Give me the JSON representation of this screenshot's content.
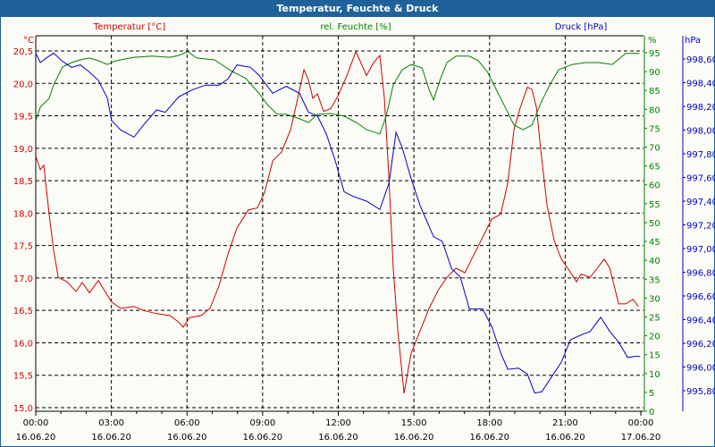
{
  "window": {
    "title": "Temperatur, Feuchte & Druck"
  },
  "chart_data": {
    "type": "line",
    "title": "Temperatur, Feuchte & Druck",
    "colors": {
      "temperature": "#cc0000",
      "humidity": "#008000",
      "pressure": "#0000cc",
      "title_bg": "#1f6299"
    },
    "xlabel": "",
    "x_unit": "hours since 16.06.20 00:00",
    "xlim": [
      0,
      24
    ],
    "x_ticks": [
      {
        "time": "00:00",
        "date": "16.06.20"
      },
      {
        "time": "03:00",
        "date": "16.06.20"
      },
      {
        "time": "06:00",
        "date": "16.06.20"
      },
      {
        "time": "09:00",
        "date": "16.06.20"
      },
      {
        "time": "12:00",
        "date": "16.06.20"
      },
      {
        "time": "15:00",
        "date": "16.06.20"
      },
      {
        "time": "18:00",
        "date": "16.06.20"
      },
      {
        "time": "21:00",
        "date": "16.06.20"
      },
      {
        "time": "00:00",
        "date": "17.06.20"
      }
    ],
    "grid": true,
    "axes": {
      "temperature": {
        "unit": "°C",
        "ylim": [
          15.0,
          20.5
        ],
        "ticks": [
          "15,0",
          "15,5",
          "16,0",
          "16,5",
          "17,0",
          "17,5",
          "18,0",
          "18,5",
          "19,0",
          "19,5",
          "20,0",
          "20,5"
        ]
      },
      "humidity": {
        "unit": "%",
        "ylim": [
          0,
          95
        ],
        "ticks": [
          "0",
          "5",
          "10",
          "15",
          "20",
          "25",
          "30",
          "35",
          "40",
          "45",
          "50",
          "55",
          "60",
          "65",
          "70",
          "75",
          "80",
          "85",
          "90",
          "95"
        ]
      },
      "pressure": {
        "unit": "hPa",
        "ylim": [
          995.8,
          998.6
        ],
        "ticks": [
          "995,80",
          "996,00",
          "996,20",
          "996,40",
          "996,60",
          "996,80",
          "997,00",
          "997,20",
          "997,40",
          "997,60",
          "997,80",
          "998,00",
          "998,20",
          "998,40",
          "998,60"
        ]
      }
    },
    "series": [
      {
        "name": "Temperatur [°C]",
        "axis": "temperature",
        "points": [
          [
            0,
            18.88
          ],
          [
            0.18,
            18.67
          ],
          [
            0.32,
            18.74
          ],
          [
            0.53,
            17.98
          ],
          [
            0.71,
            17.43
          ],
          [
            0.89,
            17.01
          ],
          [
            1.24,
            16.94
          ],
          [
            1.6,
            16.79
          ],
          [
            1.84,
            16.93
          ],
          [
            2.13,
            16.77
          ],
          [
            2.48,
            16.96
          ],
          [
            3.01,
            16.63
          ],
          [
            3.37,
            16.53
          ],
          [
            3.9,
            16.56
          ],
          [
            4.26,
            16.5
          ],
          [
            4.79,
            16.45
          ],
          [
            5.32,
            16.42
          ],
          [
            5.67,
            16.32
          ],
          [
            5.85,
            16.24
          ],
          [
            6.1,
            16.39
          ],
          [
            6.56,
            16.42
          ],
          [
            6.91,
            16.53
          ],
          [
            7.27,
            16.88
          ],
          [
            7.62,
            17.36
          ],
          [
            7.98,
            17.77
          ],
          [
            8.44,
            18.05
          ],
          [
            8.79,
            18.08
          ],
          [
            9.08,
            18.32
          ],
          [
            9.4,
            18.81
          ],
          [
            9.75,
            18.94
          ],
          [
            10.11,
            19.29
          ],
          [
            10.39,
            19.77
          ],
          [
            10.64,
            20.21
          ],
          [
            10.82,
            20.05
          ],
          [
            10.99,
            19.77
          ],
          [
            11.17,
            19.84
          ],
          [
            11.42,
            19.57
          ],
          [
            11.7,
            19.61
          ],
          [
            11.99,
            19.81
          ],
          [
            12.34,
            20.12
          ],
          [
            12.7,
            20.49
          ],
          [
            13.12,
            20.12
          ],
          [
            13.4,
            20.32
          ],
          [
            13.65,
            20.43
          ],
          [
            13.83,
            19.77
          ],
          [
            14.01,
            18.53
          ],
          [
            14.18,
            17.15
          ],
          [
            14.36,
            16.19
          ],
          [
            14.61,
            15.22
          ],
          [
            14.89,
            15.84
          ],
          [
            15.25,
            16.19
          ],
          [
            15.6,
            16.53
          ],
          [
            15.96,
            16.81
          ],
          [
            16.31,
            17.01
          ],
          [
            16.67,
            17.15
          ],
          [
            17.02,
            17.08
          ],
          [
            17.38,
            17.36
          ],
          [
            17.73,
            17.63
          ],
          [
            18.09,
            17.91
          ],
          [
            18.44,
            17.98
          ],
          [
            18.72,
            18.46
          ],
          [
            18.97,
            19.29
          ],
          [
            19.22,
            19.63
          ],
          [
            19.5,
            19.94
          ],
          [
            19.68,
            19.91
          ],
          [
            19.86,
            19.63
          ],
          [
            20.04,
            18.94
          ],
          [
            20.28,
            18.12
          ],
          [
            20.57,
            17.57
          ],
          [
            20.85,
            17.29
          ],
          [
            21.1,
            17.15
          ],
          [
            21.45,
            16.94
          ],
          [
            21.63,
            17.06
          ],
          [
            21.99,
            17.01
          ],
          [
            22.27,
            17.15
          ],
          [
            22.55,
            17.29
          ],
          [
            22.77,
            17.15
          ],
          [
            23.12,
            16.6
          ],
          [
            23.4,
            16.6
          ],
          [
            23.69,
            16.67
          ],
          [
            23.9,
            16.56
          ]
        ]
      },
      {
        "name": "rel. Feuchte [%]",
        "axis": "humidity",
        "points": [
          [
            0,
            77.0
          ],
          [
            0.18,
            80.6
          ],
          [
            0.53,
            82.9
          ],
          [
            0.71,
            86.5
          ],
          [
            0.89,
            88.9
          ],
          [
            1.06,
            91.2
          ],
          [
            1.42,
            92.4
          ],
          [
            1.77,
            93.1
          ],
          [
            2.13,
            93.6
          ],
          [
            2.48,
            92.9
          ],
          [
            2.84,
            91.9
          ],
          [
            3.19,
            92.9
          ],
          [
            3.9,
            93.8
          ],
          [
            4.61,
            94.1
          ],
          [
            5.32,
            93.8
          ],
          [
            5.67,
            94.3
          ],
          [
            6.03,
            95.3
          ],
          [
            6.38,
            93.6
          ],
          [
            7.09,
            93.1
          ],
          [
            7.8,
            90.0
          ],
          [
            8.33,
            88.2
          ],
          [
            8.87,
            84.1
          ],
          [
            9.22,
            81.0
          ],
          [
            9.57,
            78.7
          ],
          [
            9.93,
            78.7
          ],
          [
            10.46,
            77.5
          ],
          [
            10.82,
            76.5
          ],
          [
            11.17,
            78.7
          ],
          [
            11.7,
            78.9
          ],
          [
            12.23,
            78.2
          ],
          [
            12.77,
            76.3
          ],
          [
            13.12,
            74.6
          ],
          [
            13.65,
            73.5
          ],
          [
            13.9,
            78.2
          ],
          [
            14.18,
            86.5
          ],
          [
            14.54,
            90.5
          ],
          [
            14.89,
            91.9
          ],
          [
            15.32,
            91.0
          ],
          [
            15.6,
            85.3
          ],
          [
            15.78,
            82.5
          ],
          [
            16.03,
            87.7
          ],
          [
            16.31,
            92.4
          ],
          [
            16.67,
            94.1
          ],
          [
            17.2,
            94.1
          ],
          [
            17.55,
            92.9
          ],
          [
            17.91,
            90.0
          ],
          [
            18.26,
            85.3
          ],
          [
            18.62,
            80.6
          ],
          [
            18.97,
            75.8
          ],
          [
            19.33,
            74.6
          ],
          [
            19.68,
            75.8
          ],
          [
            20.04,
            81.8
          ],
          [
            20.39,
            86.5
          ],
          [
            20.74,
            90.5
          ],
          [
            21.28,
            91.9
          ],
          [
            21.81,
            92.4
          ],
          [
            22.34,
            92.4
          ],
          [
            22.87,
            91.9
          ],
          [
            23.4,
            94.8
          ],
          [
            23.94,
            94.8
          ]
        ]
      },
      {
        "name": "Druck [hPa]",
        "axis": "pressure",
        "points": [
          [
            0,
            998.65
          ],
          [
            0.18,
            998.57
          ],
          [
            0.43,
            998.61
          ],
          [
            0.71,
            998.65
          ],
          [
            1.06,
            998.58
          ],
          [
            1.42,
            998.53
          ],
          [
            1.77,
            998.55
          ],
          [
            2.13,
            998.49
          ],
          [
            2.48,
            998.42
          ],
          [
            2.84,
            998.27
          ],
          [
            3.01,
            998.08
          ],
          [
            3.37,
            998.0
          ],
          [
            3.9,
            997.94
          ],
          [
            4.26,
            998.04
          ],
          [
            4.79,
            998.17
          ],
          [
            5.14,
            998.15
          ],
          [
            5.67,
            998.28
          ],
          [
            6.21,
            998.34
          ],
          [
            6.74,
            998.38
          ],
          [
            7.27,
            998.38
          ],
          [
            7.62,
            998.43
          ],
          [
            7.98,
            998.55
          ],
          [
            8.51,
            998.53
          ],
          [
            8.87,
            998.46
          ],
          [
            9.4,
            998.31
          ],
          [
            9.93,
            998.37
          ],
          [
            10.46,
            998.31
          ],
          [
            10.82,
            998.15
          ],
          [
            11.17,
            998.12
          ],
          [
            11.52,
            997.97
          ],
          [
            11.88,
            997.74
          ],
          [
            12.23,
            997.48
          ],
          [
            12.59,
            997.44
          ],
          [
            13.12,
            997.4
          ],
          [
            13.65,
            997.33
          ],
          [
            14.01,
            997.55
          ],
          [
            14.29,
            997.98
          ],
          [
            14.54,
            997.85
          ],
          [
            14.89,
            997.59
          ],
          [
            15.25,
            997.36
          ],
          [
            15.78,
            997.1
          ],
          [
            16.13,
            997.06
          ],
          [
            16.49,
            996.83
          ],
          [
            16.84,
            996.76
          ],
          [
            17.2,
            996.49
          ],
          [
            17.73,
            996.49
          ],
          [
            18.09,
            996.34
          ],
          [
            18.44,
            996.12
          ],
          [
            18.72,
            995.98
          ],
          [
            19.15,
            995.99
          ],
          [
            19.5,
            995.94
          ],
          [
            19.79,
            995.78
          ],
          [
            20.07,
            995.79
          ],
          [
            20.5,
            995.93
          ],
          [
            20.85,
            996.04
          ],
          [
            21.21,
            996.23
          ],
          [
            21.63,
            996.27
          ],
          [
            21.99,
            996.3
          ],
          [
            22.41,
            996.42
          ],
          [
            22.77,
            996.3
          ],
          [
            23.12,
            996.21
          ],
          [
            23.48,
            996.08
          ],
          [
            23.76,
            996.09
          ],
          [
            23.97,
            996.09
          ]
        ]
      }
    ]
  }
}
